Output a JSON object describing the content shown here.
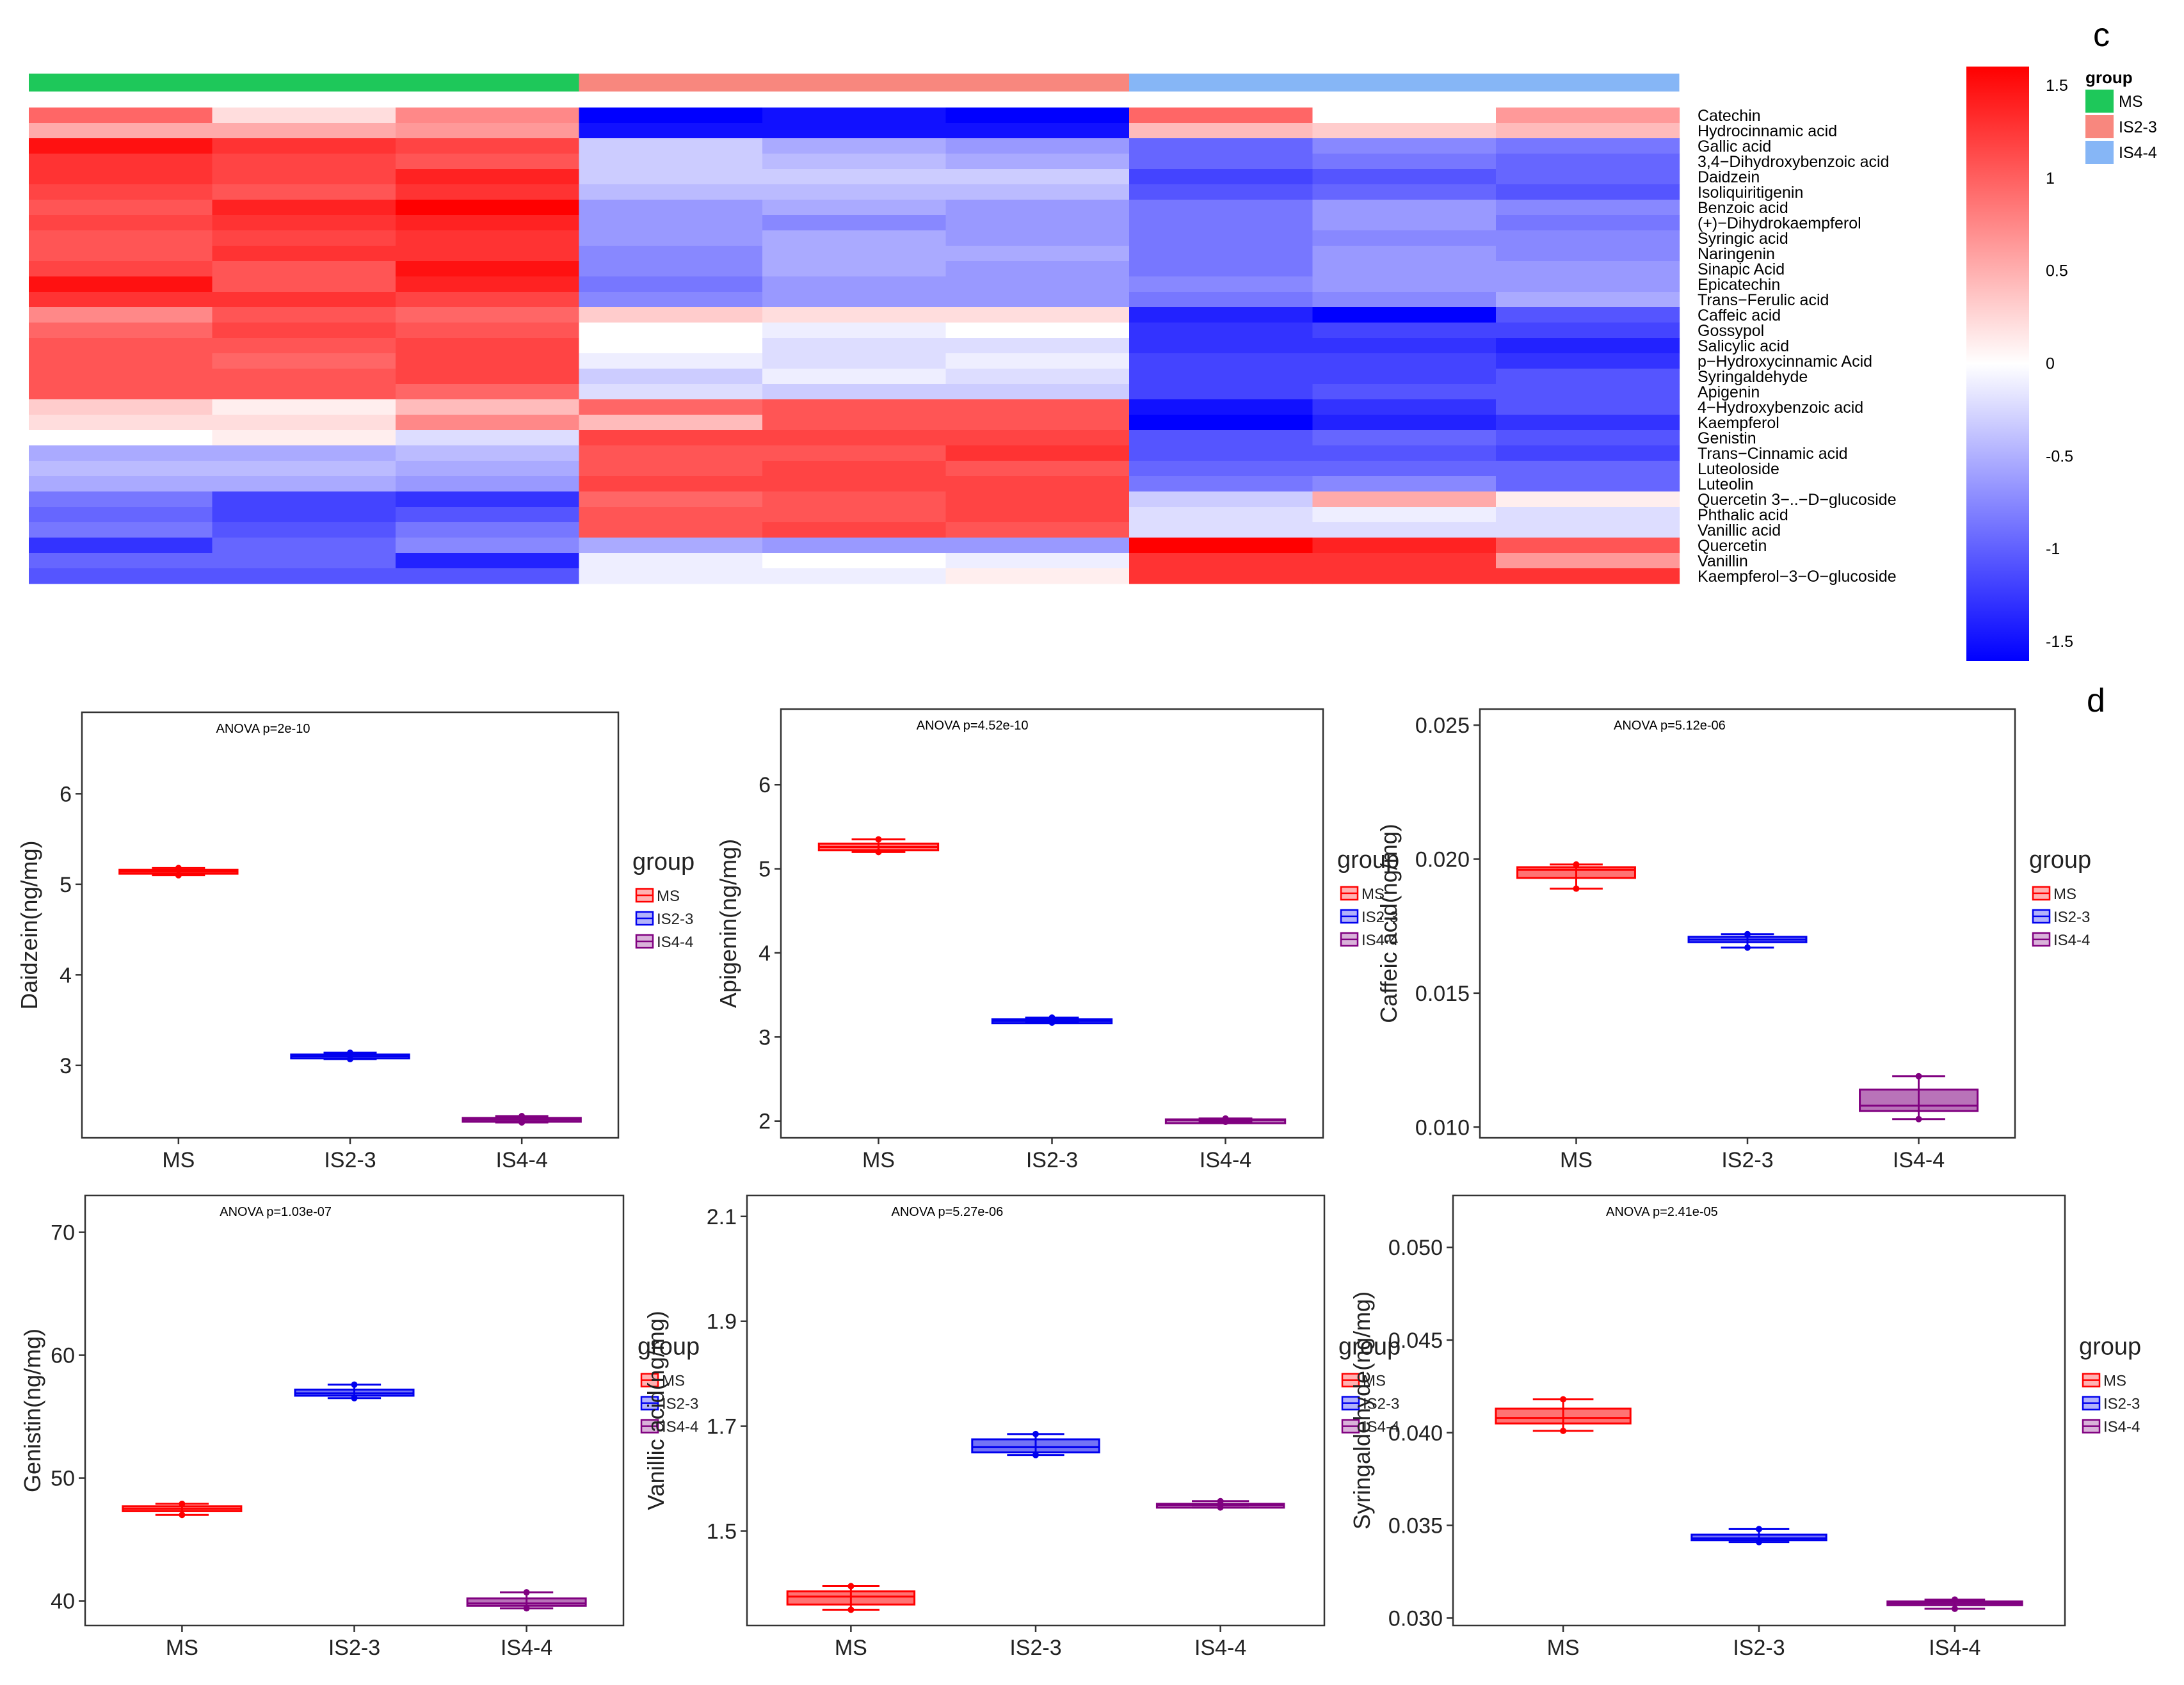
{
  "panel_labels": {
    "c": "c",
    "d": "d"
  },
  "chart_data": [
    {
      "type": "heatmap",
      "title": "",
      "group_bar": [
        {
          "name": "MS",
          "color": "#1ec85a",
          "columns": [
            0,
            1,
            2
          ]
        },
        {
          "name": "IS2-3",
          "color": "#f8877e",
          "columns": [
            3,
            4,
            5
          ]
        },
        {
          "name": "IS4-4",
          "color": "#86b6f6",
          "columns": [
            6,
            7,
            8
          ]
        }
      ],
      "legend_title": "group",
      "colorbar": {
        "ticks": [
          "1.5",
          "1",
          "0.5",
          "0",
          "-0.5",
          "-1",
          "-1.5"
        ],
        "range": [
          -1.5,
          1.5
        ],
        "colors": {
          "low": "#0000ff",
          "mid": "#ffffff",
          "high": "#ff0000"
        }
      },
      "rows": [
        "Catechin",
        "Hydrocinnamic acid",
        "Gallic acid",
        "3,4−Dihydroxybenzoic acid",
        "Daidzein",
        "Isoliquiritigenin",
        "Benzoic acid",
        "(+)−Dihydrokaempferol",
        "Syringic acid",
        "Naringenin",
        "Sinapic Acid",
        "Epicatechin",
        "Trans−Ferulic acid",
        "Caffeic acid",
        "Gossypol",
        "Salicylic acid",
        "p−Hydroxycinnamic Acid",
        "Syringaldehyde",
        "Apigenin",
        "4−Hydroxybenzoic acid",
        "Kaempferol",
        "Genistin",
        "Trans−Cinnamic acid",
        "Luteoloside",
        "Luteolin",
        "Quercetin 3−..−D−glucoside",
        "Phthalic acid",
        "Vanillic acid",
        "Quercetin",
        "Vanillin",
        "Kaempferol−3−O−glucoside"
      ],
      "values": [
        [
          0.9,
          0.2,
          0.7,
          -1.5,
          -1.4,
          -1.6,
          0.9,
          0.0,
          0.6
        ],
        [
          0.5,
          0.5,
          0.6,
          -1.4,
          -1.4,
          -1.4,
          0.4,
          0.3,
          0.4
        ],
        [
          1.4,
          1.2,
          1.1,
          -0.3,
          -0.5,
          -0.6,
          -0.9,
          -0.7,
          -0.8
        ],
        [
          1.2,
          1.1,
          1.0,
          -0.3,
          -0.4,
          -0.5,
          -0.9,
          -0.8,
          -0.9
        ],
        [
          1.2,
          1.1,
          1.3,
          -0.3,
          -0.3,
          -0.3,
          -1.1,
          -1.0,
          -0.9
        ],
        [
          1.1,
          1.0,
          1.2,
          -0.4,
          -0.4,
          -0.4,
          -1.0,
          -0.9,
          -1.0
        ],
        [
          1.0,
          1.3,
          1.5,
          -0.6,
          -0.5,
          -0.6,
          -0.8,
          -0.6,
          -0.7
        ],
        [
          1.1,
          1.2,
          1.3,
          -0.6,
          -0.7,
          -0.6,
          -0.8,
          -0.6,
          -0.8
        ],
        [
          1.0,
          1.1,
          1.2,
          -0.6,
          -0.5,
          -0.6,
          -0.8,
          -0.7,
          -0.7
        ],
        [
          1.0,
          1.2,
          1.2,
          -0.7,
          -0.5,
          -0.5,
          -0.8,
          -0.6,
          -0.7
        ],
        [
          1.1,
          1.0,
          1.4,
          -0.7,
          -0.5,
          -0.6,
          -0.8,
          -0.6,
          -0.6
        ],
        [
          1.4,
          1.0,
          1.3,
          -0.8,
          -0.6,
          -0.6,
          -0.7,
          -0.6,
          -0.6
        ],
        [
          1.2,
          1.2,
          1.1,
          -0.7,
          -0.6,
          -0.6,
          -0.8,
          -0.7,
          -0.5
        ],
        [
          0.7,
          1.0,
          0.9,
          0.3,
          0.2,
          0.2,
          -1.3,
          -1.5,
          -1.0
        ],
        [
          0.9,
          1.1,
          1.0,
          0.0,
          -0.1,
          0.0,
          -1.2,
          -1.1,
          -1.1
        ],
        [
          1.0,
          1.0,
          1.1,
          0.0,
          -0.2,
          -0.2,
          -1.2,
          -1.2,
          -1.3
        ],
        [
          1.0,
          0.9,
          1.1,
          -0.1,
          -0.2,
          -0.1,
          -1.1,
          -1.1,
          -1.2
        ],
        [
          1.0,
          1.0,
          1.1,
          -0.3,
          -0.1,
          -0.2,
          -1.1,
          -1.1,
          -1.0
        ],
        [
          1.0,
          1.0,
          0.9,
          -0.2,
          -0.3,
          -0.3,
          -1.1,
          -1.0,
          -1.0
        ],
        [
          0.3,
          0.1,
          0.4,
          0.9,
          1.0,
          1.0,
          -1.4,
          -1.2,
          -1.0
        ],
        [
          0.2,
          0.2,
          0.7,
          0.4,
          1.0,
          1.0,
          -1.5,
          -1.3,
          -1.2
        ],
        [
          0.0,
          0.1,
          -0.2,
          1.1,
          1.1,
          1.1,
          -1.0,
          -0.9,
          -1.0
        ],
        [
          -0.5,
          -0.5,
          -0.4,
          1.0,
          1.0,
          1.2,
          -1.0,
          -1.0,
          -1.1
        ],
        [
          -0.4,
          -0.4,
          -0.5,
          1.0,
          1.1,
          1.0,
          -0.9,
          -0.9,
          -0.9
        ],
        [
          -0.5,
          -0.5,
          -0.6,
          1.1,
          1.1,
          1.1,
          -0.8,
          -0.7,
          -0.9
        ],
        [
          -0.8,
          -1.1,
          -1.2,
          0.9,
          1.0,
          1.1,
          -0.3,
          0.5,
          0.1
        ],
        [
          -0.9,
          -1.1,
          -1.0,
          1.0,
          1.0,
          1.1,
          -0.2,
          -0.1,
          -0.2
        ],
        [
          -0.8,
          -1.0,
          -0.8,
          1.0,
          1.1,
          1.0,
          -0.2,
          -0.2,
          -0.2
        ],
        [
          -1.2,
          -0.9,
          -0.7,
          -0.5,
          -0.6,
          -0.6,
          1.5,
          1.3,
          1.0
        ],
        [
          -0.9,
          -0.9,
          -1.3,
          -0.1,
          0.0,
          -0.1,
          1.2,
          1.2,
          0.6
        ],
        [
          -1.0,
          -1.0,
          -1.0,
          -0.1,
          -0.1,
          0.1,
          1.2,
          1.2,
          1.2
        ]
      ]
    },
    {
      "type": "box",
      "annotation": "ANOVA p=2e-10",
      "ylabel": "Daidzein(ng/mg)",
      "categories": [
        "MS",
        "IS2-3",
        "IS4-4"
      ],
      "ylim": [
        2.2,
        6.9
      ],
      "yticks": [
        {
          "v": 3,
          "t": "3"
        },
        {
          "v": 4,
          "t": "4"
        },
        {
          "v": 5,
          "t": "5"
        },
        {
          "v": 6,
          "t": "6"
        }
      ],
      "boxes": [
        {
          "min": 5.1,
          "q1": 5.12,
          "median": 5.14,
          "q3": 5.16,
          "max": 5.18
        },
        {
          "min": 3.07,
          "q1": 3.08,
          "median": 3.1,
          "q3": 3.12,
          "max": 3.14
        },
        {
          "min": 2.37,
          "q1": 2.38,
          "median": 2.4,
          "q3": 2.42,
          "max": 2.44
        }
      ],
      "legend": {
        "title": "group",
        "items": [
          "MS",
          "IS2-3",
          "IS4-4"
        ]
      }
    },
    {
      "type": "box",
      "annotation": "ANOVA p=4.52e-10",
      "ylabel": "Apigenin(ng/mg)",
      "categories": [
        "MS",
        "IS2-3",
        "IS4-4"
      ],
      "ylim": [
        1.8,
        6.9
      ],
      "yticks": [
        {
          "v": 2,
          "t": "2"
        },
        {
          "v": 3,
          "t": "3"
        },
        {
          "v": 4,
          "t": "4"
        },
        {
          "v": 5,
          "t": "5"
        },
        {
          "v": 6,
          "t": "6"
        }
      ],
      "boxes": [
        {
          "min": 5.2,
          "q1": 5.22,
          "median": 5.26,
          "q3": 5.3,
          "max": 5.35
        },
        {
          "min": 3.17,
          "q1": 3.18,
          "median": 3.19,
          "q3": 3.21,
          "max": 3.23
        },
        {
          "min": 1.99,
          "q1": 2.0,
          "median": 2.01,
          "q3": 2.02,
          "max": 2.03
        }
      ],
      "legend": {
        "title": "group",
        "items": [
          "MS",
          "IS2-3",
          "IS4-4"
        ]
      }
    },
    {
      "type": "box",
      "annotation": "ANOVA p=5.12e-06",
      "ylabel": "Caffeic acid(ng/mg)",
      "categories": [
        "MS",
        "IS2-3",
        "IS4-4"
      ],
      "ylim": [
        0.0096,
        0.0256
      ],
      "yticks": [
        {
          "v": 0.01,
          "t": "0.010"
        },
        {
          "v": 0.015,
          "t": "0.015"
        },
        {
          "v": 0.02,
          "t": "0.020"
        },
        {
          "v": 0.025,
          "t": "0.025"
        }
      ],
      "boxes": [
        {
          "min": 0.0189,
          "q1": 0.0193,
          "median": 0.0196,
          "q3": 0.0197,
          "max": 0.0198
        },
        {
          "min": 0.0167,
          "q1": 0.0169,
          "median": 0.017,
          "q3": 0.0171,
          "max": 0.0172
        },
        {
          "min": 0.0103,
          "q1": 0.0106,
          "median": 0.0108,
          "q3": 0.0114,
          "max": 0.0119
        }
      ],
      "legend": {
        "title": "group",
        "items": [
          "MS",
          "IS2-3",
          "IS4-4"
        ]
      }
    },
    {
      "type": "box",
      "annotation": "ANOVA p=1.03e-07",
      "ylabel": "Genistin(ng/mg)",
      "categories": [
        "MS",
        "IS2-3",
        "IS4-4"
      ],
      "ylim": [
        38,
        73
      ],
      "yticks": [
        {
          "v": 40,
          "t": "40"
        },
        {
          "v": 50,
          "t": "50"
        },
        {
          "v": 60,
          "t": "60"
        },
        {
          "v": 70,
          "t": "70"
        }
      ],
      "boxes": [
        {
          "min": 47.0,
          "q1": 47.3,
          "median": 47.5,
          "q3": 47.7,
          "max": 47.9
        },
        {
          "min": 56.5,
          "q1": 56.7,
          "median": 56.9,
          "q3": 57.2,
          "max": 57.6
        },
        {
          "min": 39.4,
          "q1": 39.6,
          "median": 39.8,
          "q3": 40.2,
          "max": 40.7
        }
      ],
      "legend": {
        "title": "group",
        "items": [
          "MS",
          "IS2-3",
          "IS4-4"
        ]
      }
    },
    {
      "type": "box",
      "annotation": "ANOVA p=5.27e-06",
      "ylabel": "Vanillic acid(ng/mg)",
      "categories": [
        "MS",
        "IS2-3",
        "IS4-4"
      ],
      "ylim": [
        1.32,
        2.14
      ],
      "yticks": [
        {
          "v": 1.5,
          "t": "1.5"
        },
        {
          "v": 1.7,
          "t": "1.7"
        },
        {
          "v": 1.9,
          "t": "1.9"
        },
        {
          "v": 2.1,
          "t": "2.1"
        }
      ],
      "boxes": [
        {
          "min": 1.35,
          "q1": 1.36,
          "median": 1.375,
          "q3": 1.385,
          "max": 1.395
        },
        {
          "min": 1.645,
          "q1": 1.65,
          "median": 1.66,
          "q3": 1.675,
          "max": 1.685
        },
        {
          "min": 1.545,
          "q1": 1.548,
          "median": 1.55,
          "q3": 1.552,
          "max": 1.557
        }
      ],
      "legend": {
        "title": "group",
        "items": [
          "MS",
          "IS2-3",
          "IS4-4"
        ]
      }
    },
    {
      "type": "box",
      "annotation": "ANOVA p=2.41e-05",
      "ylabel": "Syringaldehyde(ng/mg)",
      "categories": [
        "MS",
        "IS2-3",
        "IS4-4"
      ],
      "ylim": [
        0.0296,
        0.0528
      ],
      "yticks": [
        {
          "v": 0.03,
          "t": "0.030"
        },
        {
          "v": 0.035,
          "t": "0.035"
        },
        {
          "v": 0.04,
          "t": "0.040"
        },
        {
          "v": 0.045,
          "t": "0.045"
        },
        {
          "v": 0.05,
          "t": "0.050"
        }
      ],
      "boxes": [
        {
          "min": 0.0401,
          "q1": 0.0405,
          "median": 0.0408,
          "q3": 0.0413,
          "max": 0.0418
        },
        {
          "min": 0.0341,
          "q1": 0.0342,
          "median": 0.0343,
          "q3": 0.0345,
          "max": 0.0348
        },
        {
          "min": 0.0305,
          "q1": 0.0307,
          "median": 0.0308,
          "q3": 0.0309,
          "max": 0.031
        }
      ],
      "legend": {
        "title": "group",
        "items": [
          "MS",
          "IS2-3",
          "IS4-4"
        ]
      }
    }
  ],
  "colors": {
    "MS": "#ff0000",
    "IS2-3": "#0000ee",
    "IS4-4": "#800080"
  }
}
